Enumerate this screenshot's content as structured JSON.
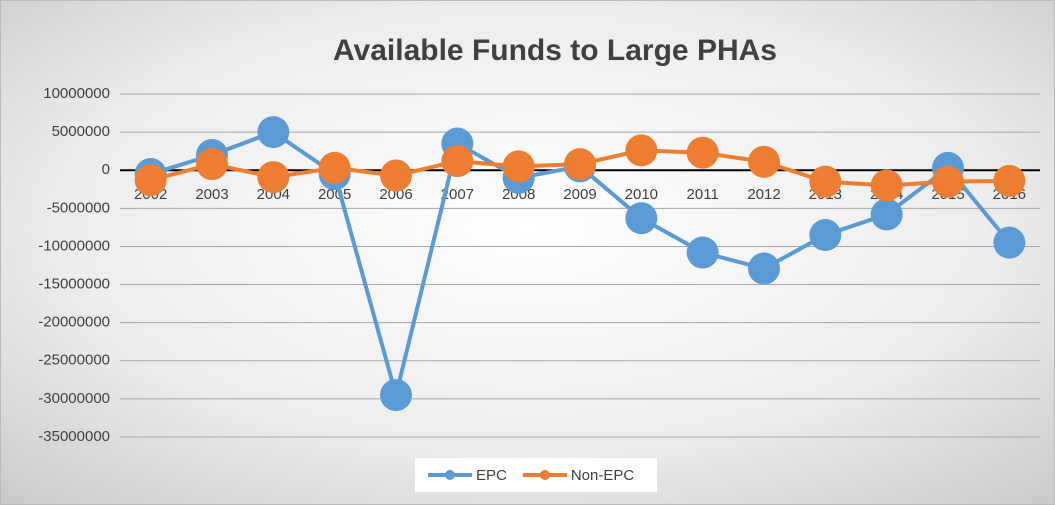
{
  "chart_data": {
    "type": "line",
    "title": "Available Funds to Large PHAs",
    "categories": [
      "2002",
      "2003",
      "2004",
      "2005",
      "2006",
      "2007",
      "2008",
      "2009",
      "2010",
      "2011",
      "2012",
      "2013",
      "2014",
      "2015",
      "2016"
    ],
    "series": [
      {
        "name": "EPC",
        "color": "#5b9bd5",
        "values": [
          -500000,
          2000000,
          5000000,
          -500000,
          -29500000,
          3500000,
          -1000000,
          500000,
          -6300000,
          -10800000,
          -12900000,
          -8500000,
          -5800000,
          300000,
          -9500000
        ]
      },
      {
        "name": "Non-EPC",
        "color": "#ed7d31",
        "values": [
          -1300000,
          800000,
          -900000,
          300000,
          -700000,
          1200000,
          500000,
          800000,
          2600000,
          2300000,
          1100000,
          -1500000,
          -2000000,
          -1500000,
          -1400000
        ]
      }
    ],
    "ylim": [
      -35000000,
      10000000
    ],
    "yticks": [
      -35000000,
      -30000000,
      -25000000,
      -20000000,
      -15000000,
      -10000000,
      -5000000,
      0,
      5000000,
      10000000
    ],
    "grid": true,
    "legend": "bottom"
  }
}
